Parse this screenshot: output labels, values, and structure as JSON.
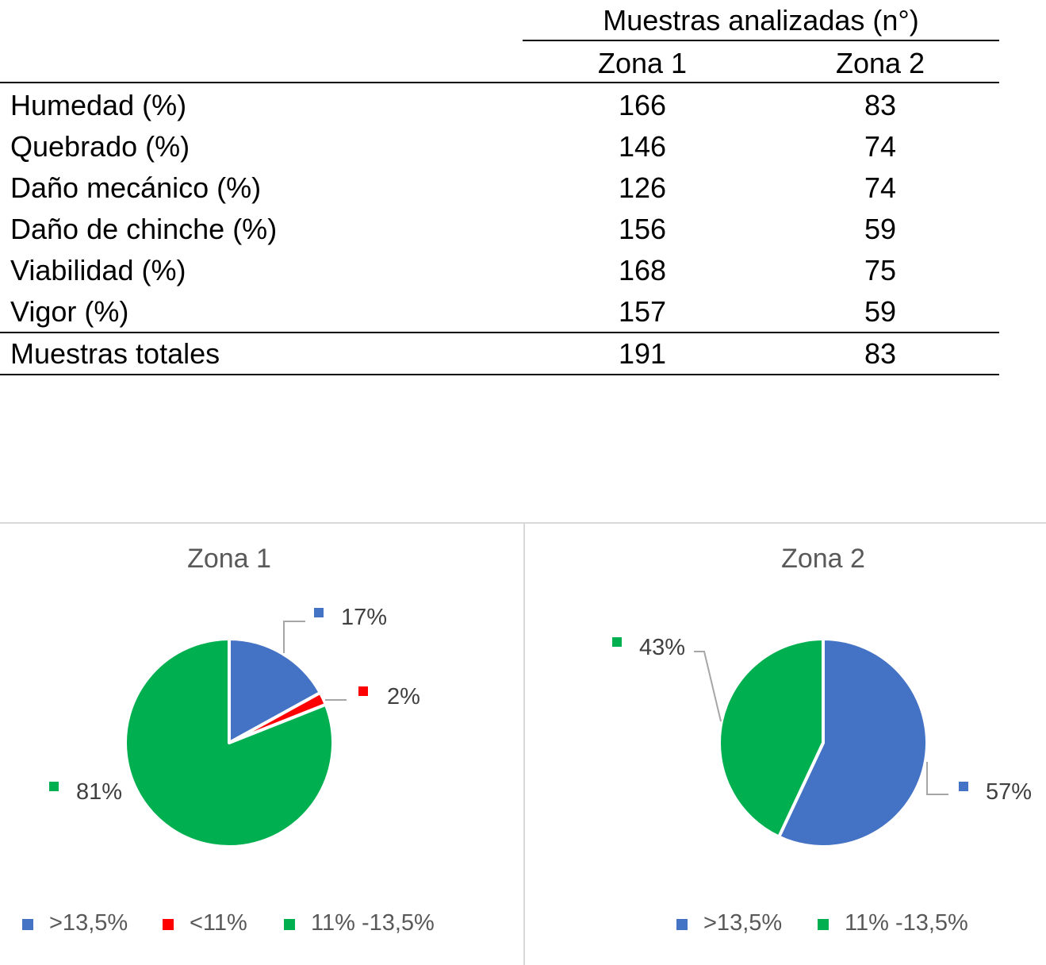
{
  "table": {
    "group_header": "Muestras analizadas (n°)",
    "columns": [
      "Zona 1",
      "Zona 2"
    ],
    "rows": [
      {
        "label": "Humedad (%)",
        "values": [
          "166",
          "83"
        ]
      },
      {
        "label": "Quebrado (%)",
        "values": [
          "146",
          "74"
        ]
      },
      {
        "label": "Daño mecánico (%)",
        "values": [
          "126",
          "74"
        ]
      },
      {
        "label": "Daño de chinche (%)",
        "values": [
          "156",
          "59"
        ]
      },
      {
        "label": "Viabilidad (%)",
        "values": [
          "168",
          "75"
        ]
      },
      {
        "label": "Vigor (%)",
        "values": [
          "157",
          "59"
        ]
      }
    ],
    "total": {
      "label": "Muestras totales",
      "values": [
        "191",
        "83"
      ]
    }
  },
  "chart_data": [
    {
      "type": "pie",
      "title": "Zona 1",
      "categories": [
        ">13,5%",
        "<11%",
        "11% -13,5%"
      ],
      "values": [
        17,
        2,
        81
      ],
      "labels": [
        "17%",
        "2%",
        "81%"
      ],
      "colors": [
        "#4472C4",
        "#FF0000",
        "#00B050"
      ],
      "legend": "bottom"
    },
    {
      "type": "pie",
      "title": "Zona 2",
      "categories": [
        ">13,5%",
        "11% -13,5%"
      ],
      "values": [
        57,
        43
      ],
      "labels": [
        "57%",
        "43%"
      ],
      "colors": [
        "#4472C4",
        "#00B050"
      ],
      "legend": "bottom"
    }
  ]
}
